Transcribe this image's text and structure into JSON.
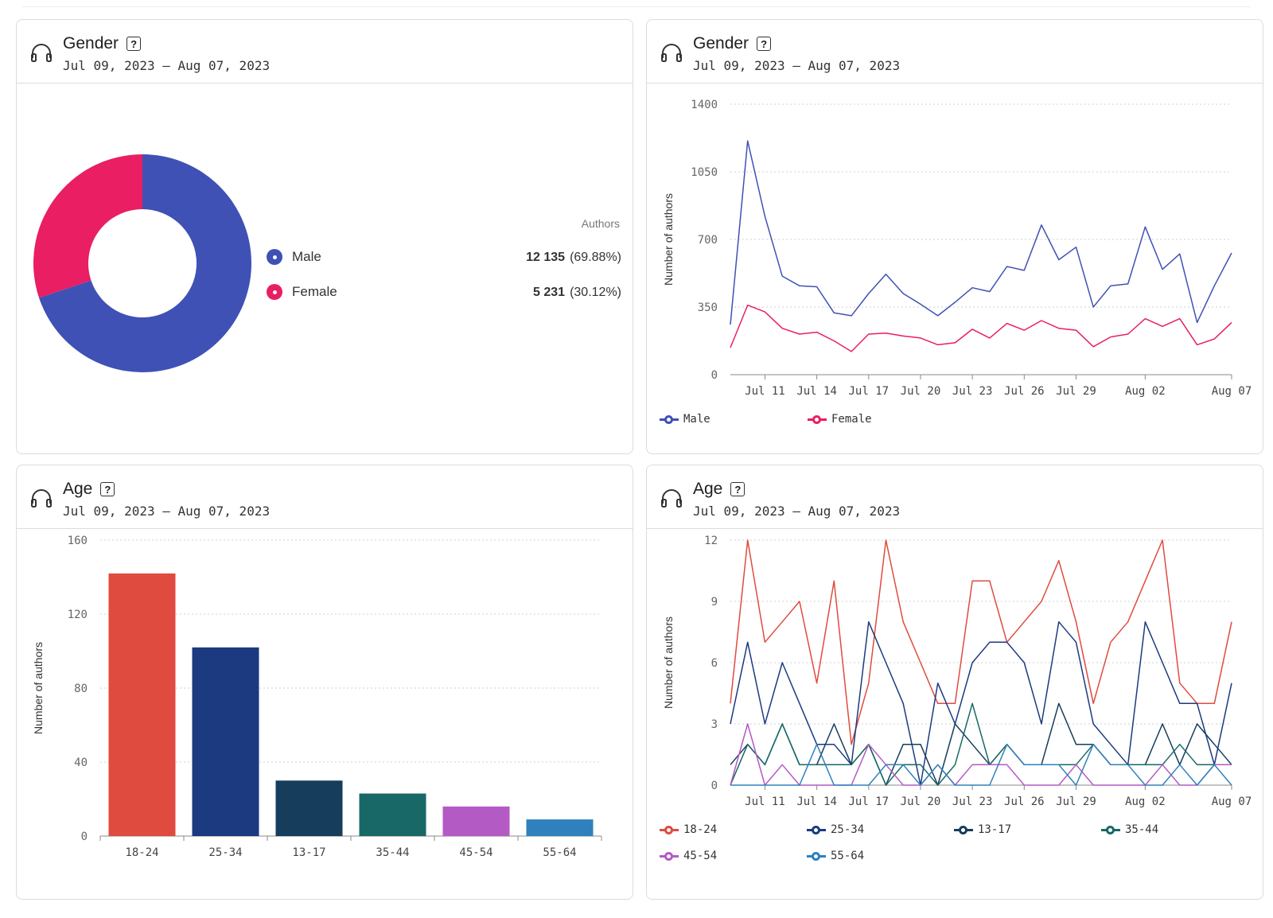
{
  "colors": {
    "male": "#3f51b5",
    "female": "#e91e63",
    "age_18_24": "#e04b3f",
    "age_25_34": "#1c3a80",
    "age_13_17": "#163d5c",
    "age_35_44": "#176866",
    "age_45_54": "#b45ac5",
    "age_55_64": "#2f80bd"
  },
  "panels": {
    "gender_donut": {
      "title": "Gender",
      "date_range": "Jul 09, 2023 – Aug 07, 2023",
      "icon": "headphones-icon",
      "help_icon": "?",
      "legend_header": "Authors",
      "rows": [
        {
          "label": "Male",
          "count": "12 135",
          "pct": "(69.88%)"
        },
        {
          "label": "Female",
          "count": "5 231",
          "pct": "(30.12%)"
        }
      ]
    },
    "gender_line": {
      "title": "Gender",
      "date_range": "Jul 09, 2023 – Aug 07, 2023",
      "icon": "headphones-icon",
      "help_icon": "?",
      "legend": [
        "Male",
        "Female"
      ]
    },
    "age_bar": {
      "title": "Age",
      "date_range": "Jul 09, 2023 – Aug 07, 2023",
      "icon": "headphones-icon",
      "help_icon": "?"
    },
    "age_line": {
      "title": "Age",
      "date_range": "Jul 09, 2023 – Aug 07, 2023",
      "icon": "headphones-icon",
      "help_icon": "?",
      "legend": [
        "18-24",
        "25-34",
        "13-17",
        "35-44",
        "45-54",
        "55-64"
      ]
    }
  },
  "chart_data": [
    {
      "type": "pie",
      "title": "Gender",
      "categories": [
        "Male",
        "Female"
      ],
      "values": [
        12135,
        5231
      ],
      "percentages": [
        69.88,
        30.12
      ],
      "donut": true
    },
    {
      "type": "line",
      "title": "Gender",
      "ylabel": "Number of authors",
      "ylim": [
        0,
        1400
      ],
      "yticks": [
        "0",
        "350",
        "700",
        "1050",
        "1400"
      ],
      "xticks": [
        {
          "label": "Jul 11",
          "day": 2
        },
        {
          "label": "Jul 14",
          "day": 5
        },
        {
          "label": "Jul 17",
          "day": 8
        },
        {
          "label": "Jul 20",
          "day": 11
        },
        {
          "label": "Jul 23",
          "day": 14
        },
        {
          "label": "Jul 26",
          "day": 17
        },
        {
          "label": "Jul 29",
          "day": 20
        },
        {
          "label": "Aug 02",
          "day": 24
        },
        {
          "label": "Aug 07",
          "day": 29
        }
      ],
      "x_start": "Jul 09",
      "series": [
        {
          "name": "Male",
          "values": [
            260,
            1210,
            820,
            510,
            460,
            455,
            320,
            305,
            420,
            520,
            420,
            365,
            305,
            375,
            450,
            430,
            560,
            540,
            775,
            595,
            660,
            350,
            460,
            470,
            765,
            545,
            625,
            270,
            460,
            630
          ]
        },
        {
          "name": "Female",
          "values": [
            140,
            360,
            325,
            240,
            210,
            220,
            175,
            120,
            210,
            215,
            200,
            190,
            155,
            165,
            235,
            190,
            265,
            230,
            280,
            240,
            230,
            145,
            195,
            210,
            290,
            250,
            290,
            155,
            185,
            270
          ]
        }
      ]
    },
    {
      "type": "bar",
      "title": "Age",
      "ylabel": "Number of authors",
      "ylim": [
        0,
        160
      ],
      "yticks": [
        "0",
        "40",
        "80",
        "120",
        "160"
      ],
      "categories": [
        "18-24",
        "25-34",
        "13-17",
        "35-44",
        "45-54",
        "55-64"
      ],
      "values": [
        142,
        102,
        30,
        23,
        16,
        9
      ]
    },
    {
      "type": "line",
      "title": "Age",
      "ylabel": "Number of authors",
      "ylim": [
        0,
        12
      ],
      "yticks": [
        "0",
        "3",
        "6",
        "9",
        "12"
      ],
      "xticks": [
        {
          "label": "Jul 11",
          "day": 2
        },
        {
          "label": "Jul 14",
          "day": 5
        },
        {
          "label": "Jul 17",
          "day": 8
        },
        {
          "label": "Jul 20",
          "day": 11
        },
        {
          "label": "Jul 23",
          "day": 14
        },
        {
          "label": "Jul 26",
          "day": 17
        },
        {
          "label": "Jul 29",
          "day": 20
        },
        {
          "label": "Aug 02",
          "day": 24
        },
        {
          "label": "Aug 07",
          "day": 29
        }
      ],
      "x_start": "Jul 09",
      "series": [
        {
          "name": "18-24",
          "values": [
            4,
            12,
            7,
            8,
            9,
            5,
            10,
            2,
            5,
            12,
            8,
            6,
            4,
            4,
            10,
            10,
            7,
            8,
            9,
            11,
            8,
            4,
            7,
            8,
            10,
            12,
            5,
            4,
            4,
            8
          ]
        },
        {
          "name": "25-34",
          "values": [
            3,
            7,
            3,
            6,
            4,
            2,
            2,
            1,
            8,
            6,
            4,
            0,
            5,
            3,
            6,
            7,
            7,
            6,
            3,
            8,
            7,
            3,
            2,
            1,
            8,
            6,
            4,
            4,
            1,
            5
          ]
        },
        {
          "name": "13-17",
          "values": [
            1,
            2,
            1,
            3,
            1,
            1,
            3,
            1,
            2,
            0,
            2,
            2,
            0,
            3,
            2,
            1,
            2,
            1,
            1,
            4,
            2,
            2,
            1,
            1,
            1,
            3,
            1,
            3,
            2,
            1
          ]
        },
        {
          "name": "35-44",
          "values": [
            0,
            2,
            1,
            3,
            1,
            1,
            1,
            1,
            2,
            0,
            1,
            1,
            0,
            1,
            4,
            1,
            2,
            1,
            1,
            1,
            1,
            2,
            1,
            1,
            1,
            1,
            2,
            1,
            1,
            1
          ]
        },
        {
          "name": "45-54",
          "values": [
            0,
            3,
            0,
            1,
            0,
            0,
            0,
            0,
            2,
            1,
            0,
            0,
            1,
            0,
            1,
            1,
            1,
            0,
            0,
            0,
            1,
            0,
            0,
            0,
            0,
            1,
            0,
            0,
            1,
            1
          ]
        },
        {
          "name": "55-64",
          "values": [
            0,
            0,
            0,
            0,
            0,
            2,
            0,
            0,
            0,
            1,
            1,
            0,
            1,
            0,
            0,
            0,
            2,
            1,
            1,
            1,
            0,
            2,
            1,
            1,
            0,
            0,
            1,
            0,
            1,
            0
          ]
        }
      ]
    }
  ]
}
